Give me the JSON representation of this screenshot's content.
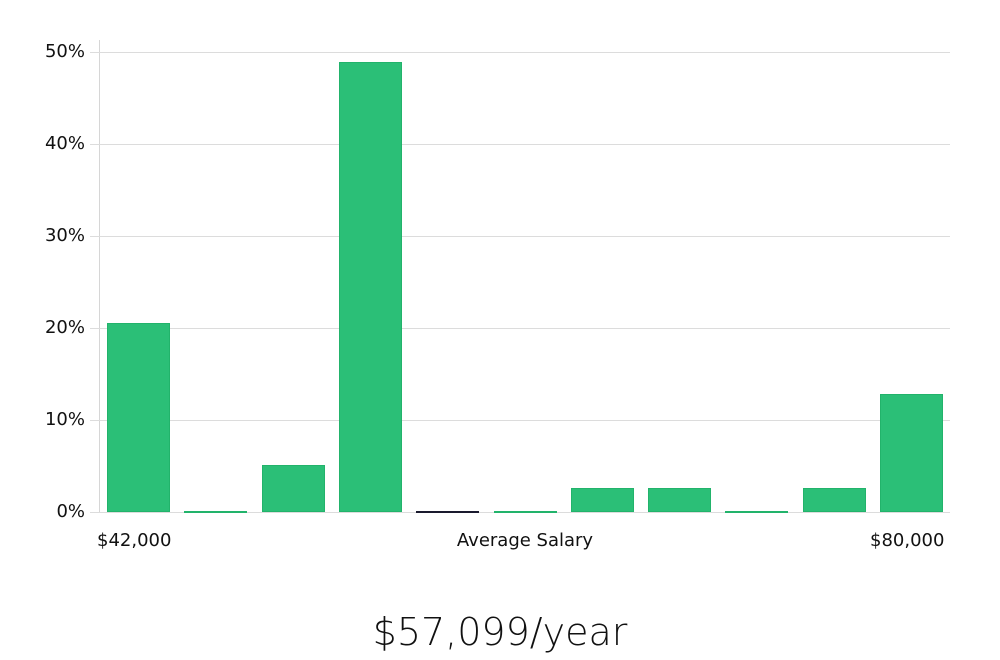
{
  "chart_data": {
    "type": "bar",
    "title": "",
    "xlabel": "Average Salary",
    "ylabel": "",
    "x_min_label": "$42,000",
    "x_max_label": "$80,000",
    "categories": [
      "bin1",
      "bin2",
      "bin3",
      "bin4",
      "bin5",
      "bin6",
      "bin7",
      "bin8",
      "bin9",
      "bin10",
      "bin11"
    ],
    "values": [
      20.5,
      0,
      5.1,
      48.9,
      0,
      0,
      2.6,
      2.6,
      0,
      2.6,
      12.8
    ],
    "yticks": [
      "0%",
      "10%",
      "20%",
      "30%",
      "40%",
      "50%"
    ],
    "ylim": [
      0,
      50
    ],
    "grid": true,
    "bar_color": "#2bbf77"
  },
  "summary": {
    "average_salary": "$57,099/year"
  }
}
